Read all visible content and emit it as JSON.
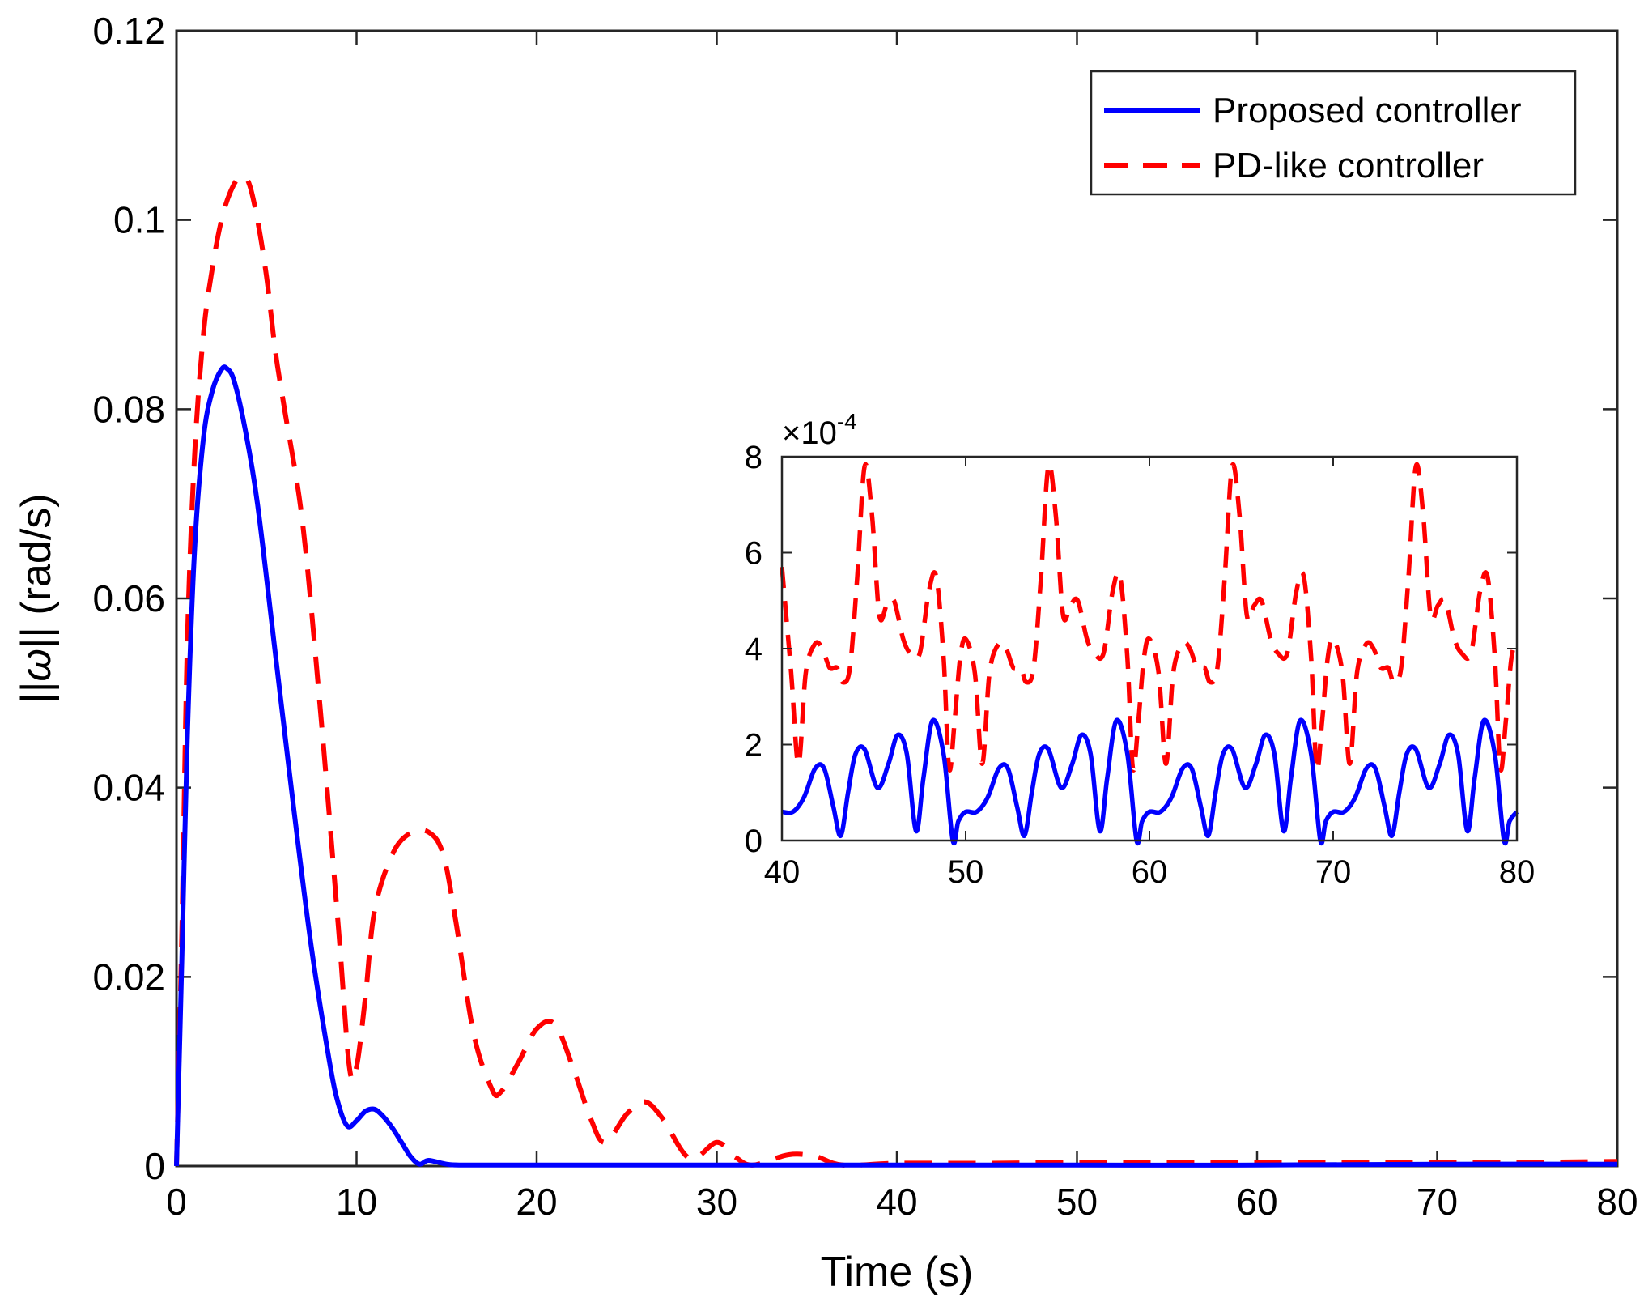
{
  "chart_data": [
    {
      "type": "line",
      "title": "",
      "xlabel": "Time (s)",
      "ylabel": "||ω|| (rad/s)",
      "ylabel_prefix": "||",
      "ylabel_symbol": "ω",
      "ylabel_suffix": "|| (rad/s)",
      "xlim": [
        0,
        80
      ],
      "ylim": [
        0,
        0.12
      ],
      "xticks": [
        0,
        10,
        20,
        30,
        40,
        50,
        60,
        70,
        80
      ],
      "xtick_labels": [
        "0",
        "10",
        "20",
        "30",
        "40",
        "50",
        "60",
        "70",
        "80"
      ],
      "yticks": [
        0,
        0.02,
        0.04,
        0.06,
        0.08,
        0.1,
        0.12
      ],
      "ytick_labels": [
        "0",
        "0.02",
        "0.04",
        "0.06",
        "0.08",
        "0.1",
        "0.12"
      ],
      "grid": false,
      "legend_position": "top-right",
      "series": [
        {
          "name": "Proposed controller",
          "color": "#0000ff",
          "style": "solid",
          "x": [
            0,
            0.3,
            0.6,
            1.0,
            1.5,
            2.0,
            2.5,
            2.8,
            3.2,
            3.8,
            4.5,
            5.5,
            6.5,
            7.5,
            8.5,
            9.0,
            9.5,
            10.0,
            10.5,
            11.0,
            11.5,
            12.0,
            12.5,
            13.0,
            13.5,
            14.0,
            15.0,
            16.0,
            20.0,
            30.0,
            40.0,
            50.0,
            60.0,
            70.0,
            80.0
          ],
          "y": [
            0,
            0.022,
            0.045,
            0.065,
            0.077,
            0.082,
            0.0842,
            0.0843,
            0.083,
            0.078,
            0.07,
            0.054,
            0.038,
            0.023,
            0.011,
            0.0065,
            0.0042,
            0.0048,
            0.0058,
            0.006,
            0.0052,
            0.004,
            0.0025,
            0.001,
            0.0002,
            0.0006,
            0.0002,
            0.0001,
            0.0001,
            0.0001,
            0.0001,
            0.0001,
            0.0001,
            0.0002,
            0.0002
          ]
        },
        {
          "name": "PD-like controller",
          "color": "#ff0000",
          "style": "dashed",
          "x": [
            0,
            0.3,
            0.6,
            1.0,
            1.5,
            2.0,
            2.5,
            3.0,
            3.5,
            4.0,
            4.5,
            5.0,
            5.5,
            6.0,
            7.0,
            8.0,
            9.0,
            9.6,
            10.0,
            10.5,
            11.0,
            12.0,
            13.0,
            14.0,
            14.8,
            15.5,
            16.5,
            17.5,
            18.0,
            19.0,
            20.0,
            21.0,
            22.0,
            23.0,
            23.8,
            25.0,
            26.0,
            27.0,
            28.5,
            30.0,
            31.0,
            32.0,
            34.0,
            35.5,
            37.0,
            40.0,
            45.0,
            50.0,
            55.0,
            60.0,
            65.0,
            70.0,
            75.0,
            80.0
          ],
          "y": [
            0,
            0.025,
            0.055,
            0.075,
            0.088,
            0.095,
            0.1,
            0.103,
            0.1045,
            0.104,
            0.1,
            0.094,
            0.086,
            0.08,
            0.068,
            0.048,
            0.025,
            0.0105,
            0.0105,
            0.018,
            0.027,
            0.033,
            0.0352,
            0.0353,
            0.033,
            0.026,
            0.014,
            0.0082,
            0.0078,
            0.011,
            0.0145,
            0.015,
            0.0105,
            0.005,
            0.0025,
            0.0055,
            0.0068,
            0.005,
            0.0008,
            0.0025,
            0.001,
            0.0001,
            0.0012,
            0.001,
            0.0001,
            0.0003,
            0.0003,
            0.0004,
            0.0004,
            0.0004,
            0.0004,
            0.0004,
            0.0004,
            0.0005
          ]
        }
      ]
    },
    {
      "type": "line",
      "role": "inset",
      "title": "",
      "xlim": [
        40,
        80
      ],
      "ylim": [
        0,
        8
      ],
      "y_exponent_label": "×10⁻⁴",
      "y_exponent_base": "×10",
      "y_exponent_power": "-4",
      "xticks": [
        40,
        50,
        60,
        70,
        80
      ],
      "xtick_labels": [
        "40",
        "50",
        "60",
        "70",
        "80"
      ],
      "yticks": [
        0,
        2,
        4,
        6,
        8
      ],
      "ytick_labels": [
        "0",
        "2",
        "4",
        "6",
        "8"
      ],
      "grid": false,
      "series": [
        {
          "name": "Proposed controller",
          "color": "#0000ff",
          "style": "solid",
          "period": 10,
          "x": [
            40.0,
            40.6,
            41.2,
            41.8,
            42.3,
            42.8,
            43.2,
            43.6,
            44.0,
            44.5,
            45.2,
            45.8,
            46.3,
            46.8,
            47.3,
            47.7,
            48.2,
            48.8,
            49.3,
            49.6,
            50.0
          ],
          "y": [
            0.6,
            0.6,
            0.9,
            1.5,
            1.5,
            0.7,
            0.1,
            1.0,
            1.8,
            1.9,
            1.1,
            1.6,
            2.2,
            1.8,
            0.2,
            1.3,
            2.5,
            1.8,
            0.0,
            0.4,
            0.6
          ]
        },
        {
          "name": "PD-like controller",
          "color": "#ff0000",
          "style": "dashed",
          "period": 10,
          "x": [
            40.0,
            40.5,
            40.9,
            41.3,
            41.8,
            42.2,
            42.6,
            43.0,
            43.3,
            43.7,
            44.1,
            44.5,
            44.9,
            45.3,
            45.7,
            46.1,
            46.6,
            47.0,
            47.5,
            48.0,
            48.4,
            48.8,
            49.1,
            49.4,
            49.7,
            50.0
          ],
          "y": [
            5.7,
            3.5,
            1.6,
            3.5,
            4.1,
            4.0,
            3.6,
            3.6,
            3.3,
            3.6,
            5.5,
            7.8,
            6.8,
            4.7,
            4.9,
            5.0,
            4.2,
            3.9,
            3.9,
            5.2,
            5.5,
            3.8,
            1.5,
            2.5,
            3.8,
            4.2
          ]
        }
      ]
    }
  ]
}
